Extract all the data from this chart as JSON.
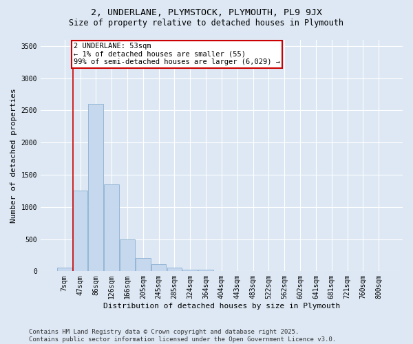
{
  "title_line1": "2, UNDERLANE, PLYMSTOCK, PLYMOUTH, PL9 9JX",
  "title_line2": "Size of property relative to detached houses in Plymouth",
  "xlabel": "Distribution of detached houses by size in Plymouth",
  "ylabel": "Number of detached properties",
  "bar_labels": [
    "7sqm",
    "47sqm",
    "86sqm",
    "126sqm",
    "166sqm",
    "205sqm",
    "245sqm",
    "285sqm",
    "324sqm",
    "364sqm",
    "404sqm",
    "443sqm",
    "483sqm",
    "522sqm",
    "562sqm",
    "602sqm",
    "641sqm",
    "681sqm",
    "721sqm",
    "760sqm",
    "800sqm"
  ],
  "bar_values": [
    55,
    1250,
    2600,
    1350,
    500,
    210,
    110,
    55,
    30,
    25,
    0,
    0,
    0,
    0,
    0,
    0,
    0,
    0,
    0,
    0,
    0
  ],
  "bar_color": "#c5d8ee",
  "bar_edge_color": "#8ab0d0",
  "subject_label": "2 UNDERLANE: 53sqm",
  "annotation_line1": "← 1% of detached houses are smaller (55)",
  "annotation_line2": "99% of semi-detached houses are larger (6,029) →",
  "annotation_box_facecolor": "#ffffff",
  "annotation_box_edgecolor": "#cc0000",
  "vline_color": "#cc0000",
  "vline_x": 0.525,
  "ylim": [
    0,
    3600
  ],
  "yticks": [
    0,
    500,
    1000,
    1500,
    2000,
    2500,
    3000,
    3500
  ],
  "bg_color": "#dde8f4",
  "plot_bg_color": "#dde8f4",
  "footer_line1": "Contains HM Land Registry data © Crown copyright and database right 2025.",
  "footer_line2": "Contains public sector information licensed under the Open Government Licence v3.0.",
  "grid_color": "#ffffff",
  "title_fontsize": 9.5,
  "subtitle_fontsize": 8.5,
  "axis_label_fontsize": 8,
  "tick_fontsize": 7,
  "footer_fontsize": 6.5,
  "annotation_fontsize": 7.5
}
